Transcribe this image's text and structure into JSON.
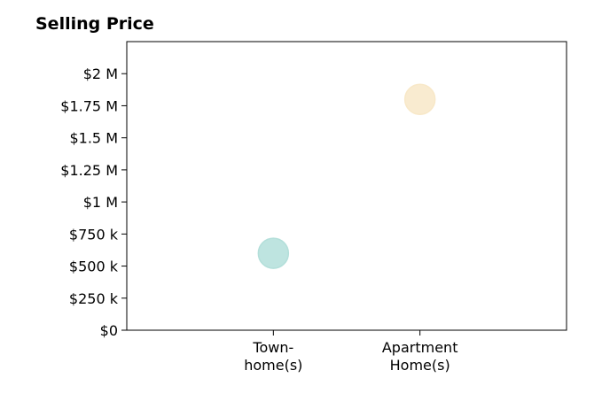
{
  "chart_data": {
    "type": "scatter",
    "title": "Selling Price",
    "xlabel": "",
    "ylabel": "",
    "categories": [
      [
        "Town-",
        "home(s)"
      ],
      [
        "Apartment",
        "Home(s)"
      ]
    ],
    "points": [
      {
        "category_index": 0,
        "value": 600000,
        "color": "#b3dfda"
      },
      {
        "category_index": 1,
        "value": 1800000,
        "color": "#f8e8c8"
      }
    ],
    "ylim": [
      0,
      2250000
    ],
    "yticks": [
      {
        "value": 0,
        "label": "$0"
      },
      {
        "value": 250000,
        "label": "$250 k"
      },
      {
        "value": 500000,
        "label": "$500 k"
      },
      {
        "value": 750000,
        "label": "$750 k"
      },
      {
        "value": 1000000,
        "label": "$1 M"
      },
      {
        "value": 1250000,
        "label": "$1.25 M"
      },
      {
        "value": 1500000,
        "label": "$1.5 M"
      },
      {
        "value": 1750000,
        "label": "$1.75 M"
      },
      {
        "value": 2000000,
        "label": "$2 M"
      }
    ],
    "grid": false,
    "legend": "none"
  }
}
